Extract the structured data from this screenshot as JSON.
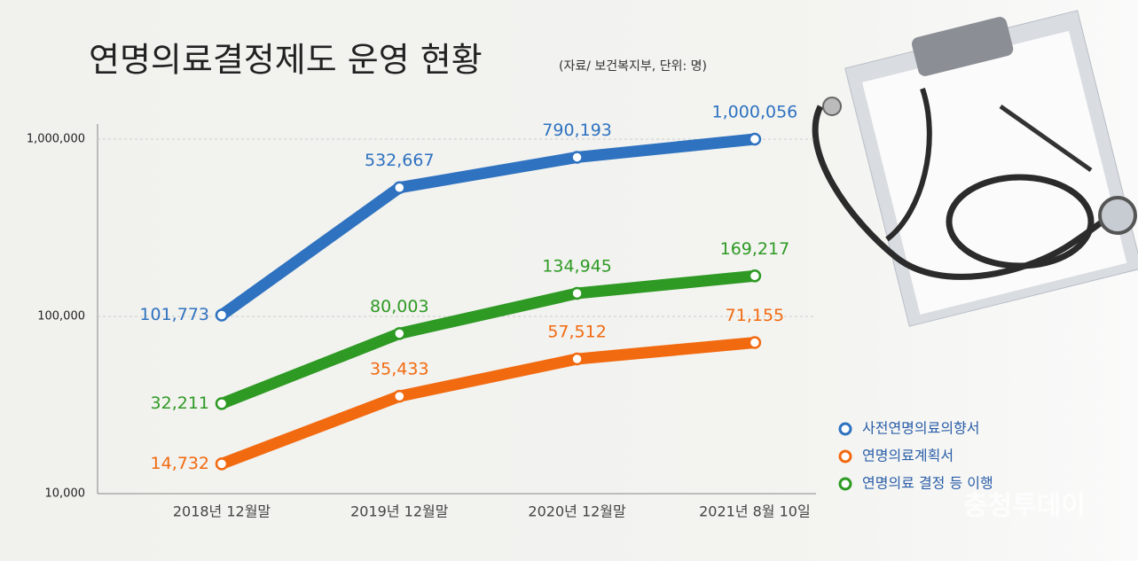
{
  "chart_data": {
    "type": "line",
    "title": "연명의료결정제도 운영 현황",
    "subtitle": "(자료/ 보건복지부, 단위: 명)",
    "watermark": "충청투데이",
    "categories": [
      "2018년 12월말",
      "2019년 12월말",
      "2020년 12월말",
      "2021년 8월 10일"
    ],
    "series": [
      {
        "name": "사전연명의료의향서",
        "color": "#2e72c0",
        "values": [
          101773,
          532667,
          790193,
          1000056
        ],
        "value_labels": [
          "101,773",
          "532,667",
          "790,193",
          "1,000,056"
        ]
      },
      {
        "name": "연명의료계획서",
        "color": "#f26a10",
        "values": [
          14732,
          35433,
          57512,
          71155
        ],
        "value_labels": [
          "14,732",
          "35,433",
          "57,512",
          "71,155"
        ]
      },
      {
        "name": "연명의료 결정 등 이행",
        "color": "#2e9a24",
        "values": [
          32211,
          80003,
          134945,
          169217
        ],
        "value_labels": [
          "32,211",
          "80,003",
          "134,945",
          "169,217"
        ]
      }
    ],
    "ylim": [
      10000,
      1000000
    ],
    "yticks": [
      {
        "value": 10000,
        "label": "10,000"
      },
      {
        "value": 100000,
        "label": "100,000"
      },
      {
        "value": 1000000,
        "label": "1,000,000"
      }
    ],
    "log_scale": true,
    "grid": true
  }
}
